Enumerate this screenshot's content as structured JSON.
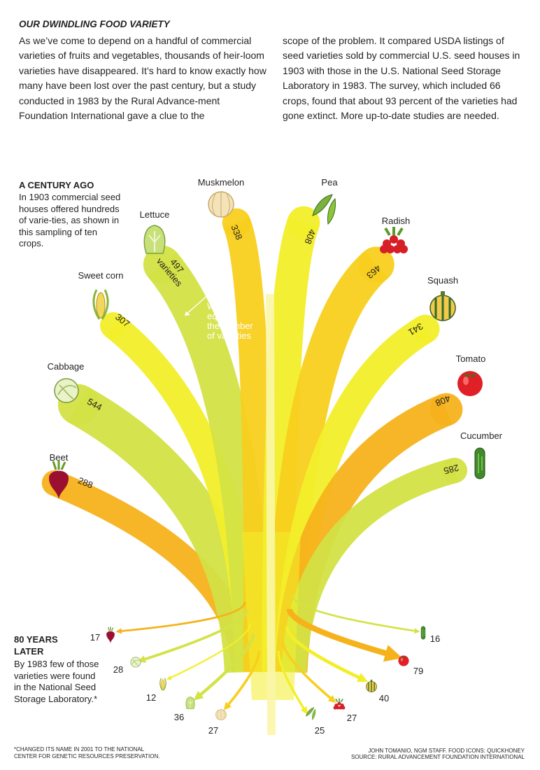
{
  "headline": "OUR DWINDLING FOOD VARIETY",
  "intro_left": "As we’ve come to depend on a handful of commercial varieties of fruits and vegetables, thousands of heir-loom varieties have disappeared. It’s hard to know exactly how many have been lost over the past century, but a study conducted in 1983 by the Rural Advance-ment Foundation International gave a clue to the",
  "intro_right": "scope of the problem. It compared USDA listings of seed varieties sold by commercial U.S. seed houses in 1903 with those in the U.S. National Seed Storage Laboratory in 1983. The survey, which included 66 crops, found that about 93 percent of the varieties had gone extinct. More up-to-date studies are needed.",
  "century_ago": {
    "heading": "A CENTURY AGO",
    "text": "In 1903 commercial seed houses offered hundreds of varie-ties, as shown in this sampling of ten crops."
  },
  "later": {
    "heading": "80 YEARS LATER",
    "text": "By 1983 few of those varieties were found in the National Seed Storage Laboratory.*"
  },
  "width_note": "Width equals the number of varieties",
  "variety_word": "varieties",
  "footnote": "*CHANGED ITS NAME IN 2001 TO THE NATIONAL CENTER FOR GENETIC RESOURCES PRESERVATION.",
  "credit": "JOHN TOMANIO, NGM STAFF. FOOD ICONS: QUICKHONEY",
  "source": "SOURCE: RURAL ADVANCEMENT FOUNDATION INTERNATIONAL",
  "colors": {
    "yellow": "#f2ee2a",
    "green": "#d3e244",
    "orange": "#f5b21b",
    "gold": "#f8cf1e"
  },
  "chart_data": {
    "type": "sankey",
    "title": "OUR DWINDLING FOOD VARIETY",
    "units": "varieties",
    "crops": [
      {
        "name": "Beet",
        "year_1903": 288,
        "year_1983": 17
      },
      {
        "name": "Cabbage",
        "year_1903": 544,
        "year_1983": 28
      },
      {
        "name": "Sweet corn",
        "year_1903": 307,
        "year_1983": 12
      },
      {
        "name": "Lettuce",
        "year_1903": 497,
        "year_1983": 36
      },
      {
        "name": "Muskmelon",
        "year_1903": 338,
        "year_1983": 27
      },
      {
        "name": "Pea",
        "year_1903": 408,
        "year_1983": 25
      },
      {
        "name": "Radish",
        "year_1903": 463,
        "year_1983": 27
      },
      {
        "name": "Squash",
        "year_1903": 341,
        "year_1983": 40
      },
      {
        "name": "Tomato",
        "year_1903": 408,
        "year_1983": 79
      },
      {
        "name": "Cucumber",
        "year_1903": 285,
        "year_1983": 16
      }
    ]
  }
}
